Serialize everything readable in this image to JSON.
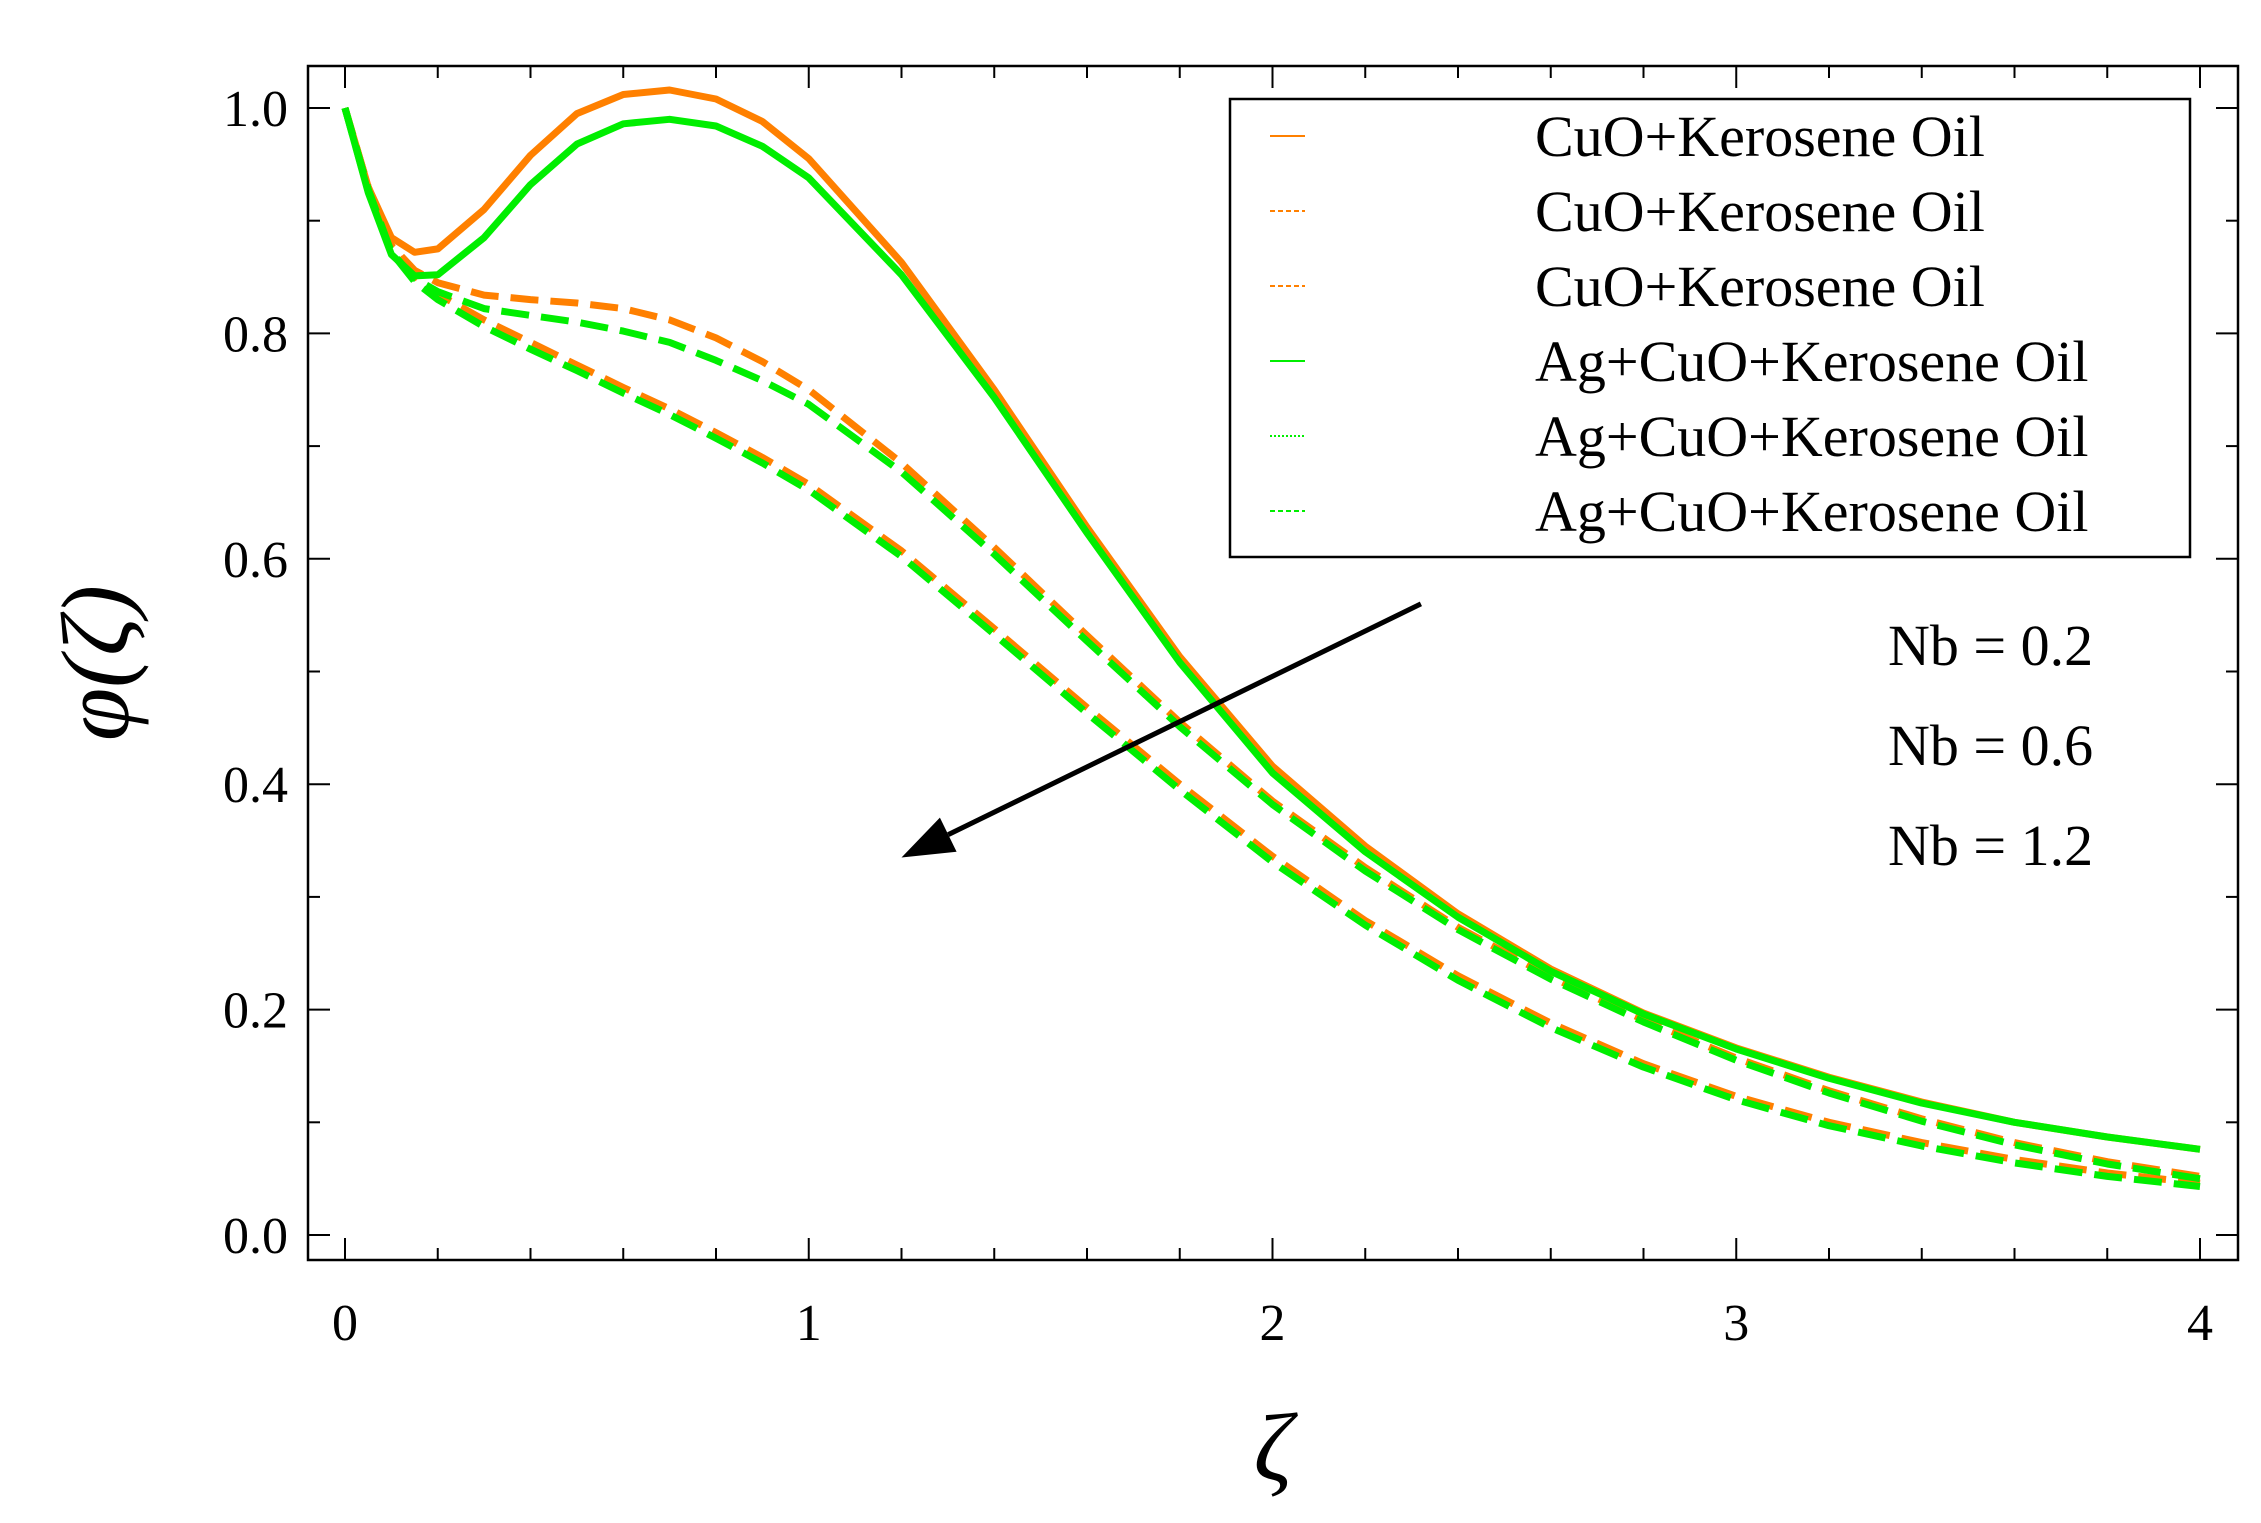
{
  "chart_data": {
    "type": "line",
    "xlabel": "ζ",
    "ylabel": "φ(ζ)",
    "xlim": [
      0,
      4
    ],
    "ylim": [
      0,
      1.0
    ],
    "xticks": [
      "0",
      "1",
      "2",
      "3",
      "4"
    ],
    "yticks": [
      "0.0",
      "0.2",
      "0.4",
      "0.6",
      "0.8",
      "1.0"
    ],
    "legend_position": "top-right",
    "series": [
      {
        "name": "CuO+Kerosene Oil",
        "color": "#ff8000",
        "style": "solid",
        "x": [
          0,
          0.05,
          0.1,
          0.15,
          0.2,
          0.3,
          0.4,
          0.5,
          0.6,
          0.7,
          0.8,
          0.9,
          1.0,
          1.2,
          1.4,
          1.6,
          1.8,
          2.0,
          2.2,
          2.4,
          2.6,
          2.8,
          3.0,
          3.2,
          3.4,
          3.6,
          3.8,
          4.0
        ],
        "y": [
          1.0,
          0.93,
          0.885,
          0.872,
          0.875,
          0.91,
          0.958,
          0.995,
          1.012,
          1.016,
          1.008,
          0.988,
          0.955,
          0.863,
          0.75,
          0.628,
          0.513,
          0.416,
          0.345,
          0.285,
          0.236,
          0.197,
          0.166,
          0.14,
          0.118,
          0.1,
          0.087,
          0.076
        ]
      },
      {
        "name": "CuO+Kerosene Oil",
        "color": "#ff8000",
        "style": "dashed",
        "x": [
          0,
          0.05,
          0.1,
          0.15,
          0.2,
          0.3,
          0.4,
          0.5,
          0.6,
          0.7,
          0.8,
          0.9,
          1.0,
          1.2,
          1.4,
          1.6,
          1.8,
          2.0,
          2.2,
          2.4,
          2.6,
          2.8,
          3.0,
          3.2,
          3.4,
          3.6,
          3.8,
          4.0
        ],
        "y": [
          1.0,
          0.93,
          0.878,
          0.856,
          0.845,
          0.834,
          0.83,
          0.827,
          0.822,
          0.812,
          0.796,
          0.775,
          0.75,
          0.685,
          0.61,
          0.532,
          0.455,
          0.385,
          0.326,
          0.273,
          0.229,
          0.191,
          0.157,
          0.128,
          0.103,
          0.082,
          0.065,
          0.052
        ]
      },
      {
        "name": "CuO+Kerosene Oil",
        "color": "#ff8000",
        "style": "dashed",
        "x": [
          0,
          0.05,
          0.1,
          0.15,
          0.2,
          0.3,
          0.4,
          0.5,
          0.6,
          0.7,
          0.8,
          0.9,
          1.0,
          1.2,
          1.4,
          1.6,
          1.8,
          2.0,
          2.2,
          2.4,
          2.6,
          2.8,
          3.0,
          3.2,
          3.4,
          3.6,
          3.8,
          4.0
        ],
        "y": [
          1.0,
          0.93,
          0.876,
          0.851,
          0.835,
          0.812,
          0.792,
          0.772,
          0.752,
          0.733,
          0.712,
          0.69,
          0.666,
          0.607,
          0.538,
          0.468,
          0.4,
          0.336,
          0.279,
          0.23,
          0.188,
          0.152,
          0.123,
          0.1,
          0.082,
          0.067,
          0.055,
          0.046
        ]
      },
      {
        "name": "Ag+CuO+Kerosene Oil",
        "color": "#00ee00",
        "style": "solid",
        "x": [
          0,
          0.05,
          0.1,
          0.15,
          0.2,
          0.3,
          0.4,
          0.5,
          0.6,
          0.7,
          0.8,
          0.9,
          1.0,
          1.2,
          1.4,
          1.6,
          1.8,
          2.0,
          2.2,
          2.4,
          2.6,
          2.8,
          3.0,
          3.2,
          3.4,
          3.6,
          3.8,
          4.0
        ],
        "y": [
          1.0,
          0.925,
          0.87,
          0.851,
          0.852,
          0.885,
          0.932,
          0.968,
          0.986,
          0.99,
          0.984,
          0.966,
          0.938,
          0.852,
          0.743,
          0.623,
          0.508,
          0.41,
          0.34,
          0.282,
          0.234,
          0.196,
          0.165,
          0.139,
          0.117,
          0.1,
          0.087,
          0.076
        ]
      },
      {
        "name": "Ag+CuO+Kerosene Oil",
        "color": "#00ee00",
        "style": "dashed",
        "x": [
          0,
          0.05,
          0.1,
          0.15,
          0.2,
          0.3,
          0.4,
          0.5,
          0.6,
          0.7,
          0.8,
          0.9,
          1.0,
          1.2,
          1.4,
          1.6,
          1.8,
          2.0,
          2.2,
          2.4,
          2.6,
          2.8,
          3.0,
          3.2,
          3.4,
          3.6,
          3.8,
          4.0
        ],
        "y": [
          1.0,
          0.928,
          0.872,
          0.849,
          0.837,
          0.822,
          0.816,
          0.81,
          0.802,
          0.792,
          0.776,
          0.758,
          0.737,
          0.677,
          0.604,
          0.527,
          0.451,
          0.382,
          0.323,
          0.271,
          0.227,
          0.189,
          0.155,
          0.126,
          0.101,
          0.08,
          0.063,
          0.05
        ]
      },
      {
        "name": "Ag+CuO+Kerosene Oil",
        "color": "#00ee00",
        "style": "dashed",
        "x": [
          0,
          0.05,
          0.1,
          0.15,
          0.2,
          0.3,
          0.4,
          0.5,
          0.6,
          0.7,
          0.8,
          0.9,
          1.0,
          1.2,
          1.4,
          1.6,
          1.8,
          2.0,
          2.2,
          2.4,
          2.6,
          2.8,
          3.0,
          3.2,
          3.4,
          3.6,
          3.8,
          4.0
        ],
        "y": [
          1.0,
          0.926,
          0.872,
          0.846,
          0.83,
          0.806,
          0.786,
          0.767,
          0.747,
          0.728,
          0.707,
          0.685,
          0.661,
          0.602,
          0.533,
          0.463,
          0.395,
          0.331,
          0.275,
          0.226,
          0.184,
          0.149,
          0.12,
          0.097,
          0.079,
          0.064,
          0.052,
          0.043
        ]
      }
    ],
    "annotations": [
      "Nb = 0.2",
      "Nb = 0.6",
      "Nb = 1.2"
    ],
    "arrow": {
      "from": [
        2.32,
        0.56
      ],
      "to": [
        1.2,
        0.335
      ]
    }
  }
}
